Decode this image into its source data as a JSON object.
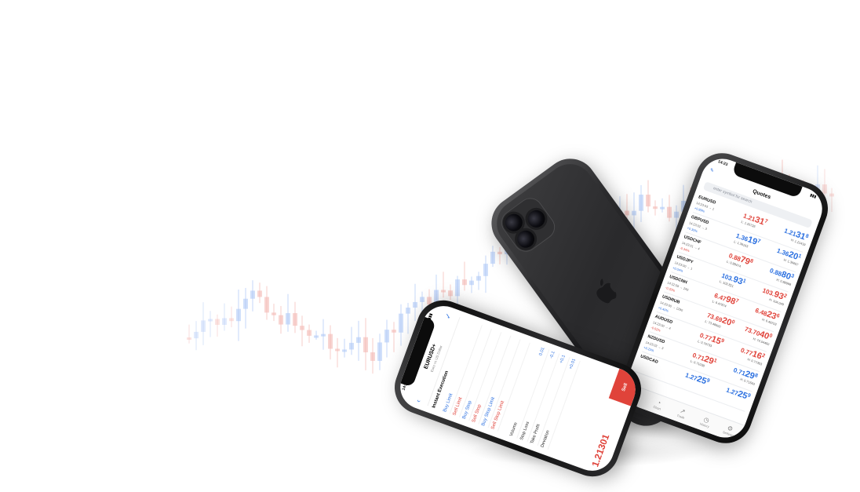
{
  "colors": {
    "bull": "#a9c4f5",
    "bear": "#f3b3ad",
    "price_up": "#2a6fe0",
    "price_down": "#e0433a"
  },
  "quotes_screen": {
    "time": "14:23",
    "edit_label": "✎",
    "title": "Quotes",
    "search_placeholder": "enter symbol for search",
    "rows": [
      {
        "symbol": "EURUSD",
        "meta": "14:23:03 → 1",
        "change": "+0.89%",
        "bid": "1.21",
        "bid_big": "31",
        "bid_sup": "7",
        "ask": "1.21",
        "ask_big": "31",
        "ask_sup": "8",
        "low": "L: 1.20726",
        "high": "H: 1.21419",
        "bid_color": "red",
        "ask_color": "blue"
      },
      {
        "symbol": "GBPUSD",
        "meta": "14:23:02 → 3",
        "change": "+0.30%",
        "bid": "1.36",
        "bid_big": "19",
        "bid_sup": "7",
        "ask": "1.36",
        "ask_big": "20",
        "ask_sup": "1",
        "low": "L: 1.36163",
        "high": "H: 1.36657",
        "bid_color": "blue",
        "ask_color": "blue"
      },
      {
        "symbol": "USDCHF",
        "meta": "14:23:01 → 4",
        "change": "-0.34%",
        "bid": "0.88",
        "bid_big": "79",
        "bid_sup": "8",
        "ask": "0.88",
        "ask_big": "80",
        "ask_sup": "3",
        "low": "L: 0.88474",
        "high": "H: 0.88998",
        "bid_color": "red",
        "ask_color": "blue"
      },
      {
        "symbol": "USDJPY",
        "meta": "14:23:00 → 1",
        "change": "+0.04%",
        "bid": "103.",
        "bid_big": "93",
        "bid_sup": "1",
        "ask": "103.",
        "ask_big": "93",
        "ask_sup": "2",
        "low": "L: 103.821",
        "high": "H: 104.049",
        "bid_color": "blue",
        "ask_color": "red"
      },
      {
        "symbol": "USDCNH",
        "meta": "14:22:59 → 249",
        "change": "-0.33%",
        "bid": "6.47",
        "bid_big": "98",
        "bid_sup": "7",
        "ask": "6.48",
        "ask_big": "23",
        "ask_sup": "6",
        "low": "L: 6.47874",
        "high": "H: 6.49703",
        "bid_color": "red",
        "ask_color": "red"
      },
      {
        "symbol": "USDRUB",
        "meta": "14:23:00 → 1290",
        "change": "+0.40%",
        "bid": "73.69",
        "bid_big": "20",
        "bid_sup": "0",
        "ask": "73.70",
        "ask_big": "40",
        "ask_sup": "0",
        "low": "L: 73.48600",
        "high": "H: 74.04450",
        "bid_color": "red",
        "ask_color": "red"
      },
      {
        "symbol": "AUDUSD",
        "meta": "14:23:00 → 4",
        "change": "-0.52%",
        "bid": "0.77",
        "bid_big": "15",
        "bid_sup": "9",
        "ask": "0.77",
        "ask_big": "16",
        "ask_sup": "2",
        "low": "L: 0.76733",
        "high": "H: 0.77353",
        "bid_color": "red",
        "ask_color": "red"
      },
      {
        "symbol": "NZDUSD",
        "meta": "14:23:03 → 3",
        "change": "+0.23%",
        "bid": "0.71",
        "bid_big": "29",
        "bid_sup": "1",
        "ask": "0.71",
        "ask_big": "29",
        "ask_sup": "8",
        "low": "L: 0.71038",
        "high": "H: 0.71563",
        "bid_color": "red",
        "ask_color": "blue"
      },
      {
        "symbol": "USDCAD",
        "meta": "",
        "change": "",
        "bid": "1.27",
        "bid_big": "25",
        "bid_sup": "9",
        "ask": "1.27",
        "ask_big": "25",
        "ask_sup": "9",
        "low": "",
        "high": "",
        "bid_color": "blue",
        "ask_color": "blue"
      }
    ],
    "tabs": [
      {
        "icon": "⇅",
        "label": "Quotes"
      },
      {
        "icon": "◔",
        "label": "Chart"
      },
      {
        "icon": "↗",
        "label": "Trade"
      },
      {
        "icon": "◷",
        "label": "History"
      },
      {
        "icon": "⚙",
        "label": "Settings"
      }
    ]
  },
  "order_screen": {
    "time": "14:25",
    "back": "‹",
    "symbol": "EURUSD+",
    "description": "Euro vs US Dollar",
    "check": "✓",
    "section": "Instant Execution",
    "order_types": [
      "Buy Limit",
      "Sell Limit",
      "Buy Stop",
      "Sell Stop",
      "Buy Stop Limit",
      "Sell Stop Limit"
    ],
    "controls": [
      {
        "label": "Volume",
        "value": "0.01"
      },
      {
        "label": "Stop Loss",
        "value": "-0.1"
      },
      {
        "label": "Take Profit",
        "value": "+0.1"
      },
      {
        "label": "Deviation",
        "value": "+0.01"
      }
    ],
    "price": "1.21301",
    "sell_label": "Sell"
  }
}
